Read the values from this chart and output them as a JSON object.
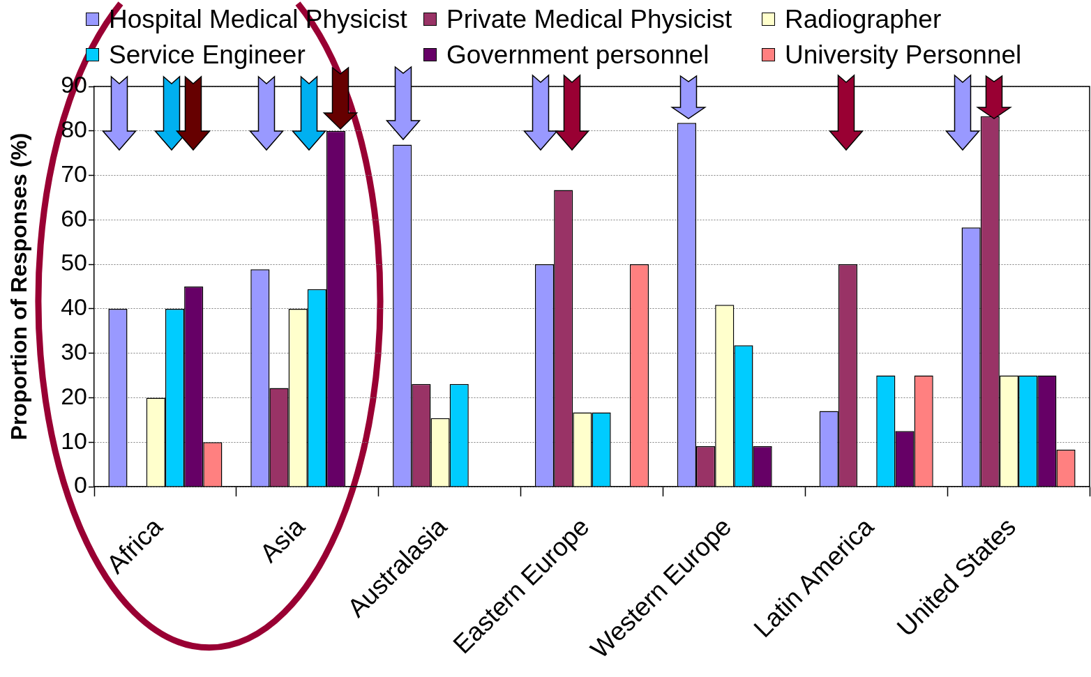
{
  "chart_data": {
    "type": "bar",
    "ylabel": "Proportion of Responses (%)",
    "categories": [
      "Africa",
      "Asia",
      "Australasia",
      "Eastern Europe",
      "Western Europe",
      "Latin America",
      "United States"
    ],
    "series": [
      {
        "name": "Hospital Medical Physicist",
        "color": "#9999ff",
        "values": [
          40,
          48.9,
          76.9,
          50,
          81.8,
          17,
          58.3
        ]
      },
      {
        "name": "Private Medical Physicist",
        "color": "#993366",
        "values": [
          null,
          22.2,
          23.1,
          66.7,
          9.1,
          50,
          83.3
        ]
      },
      {
        "name": "Radiographer",
        "color": "#ffffcc",
        "values": [
          20,
          40,
          15.4,
          16.7,
          40.9,
          null,
          25
        ]
      },
      {
        "name": "Service Engineer",
        "color": "#00ccff",
        "values": [
          40,
          44.4,
          23.1,
          16.7,
          31.8,
          25,
          25
        ]
      },
      {
        "name": "Government personnel",
        "color": "#660066",
        "values": [
          45,
          80,
          null,
          null,
          9.1,
          12.5,
          25
        ]
      },
      {
        "name": "University Personnel",
        "color": "#ff8080",
        "values": [
          10,
          null,
          null,
          50,
          null,
          25,
          8.3
        ]
      }
    ],
    "ylim": [
      0,
      90
    ],
    "yticks": [
      0,
      10,
      20,
      30,
      40,
      50,
      60,
      70,
      80,
      90
    ],
    "grid": "y",
    "legend": "top"
  }
}
